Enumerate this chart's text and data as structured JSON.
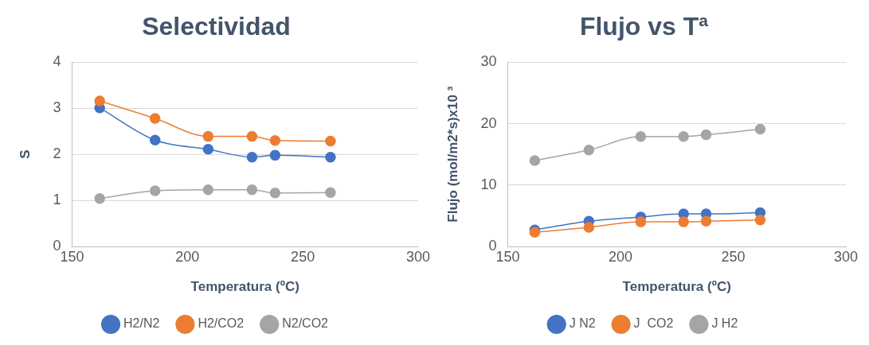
{
  "chart_data": [
    {
      "type": "line",
      "title": "Selectividad",
      "xlabel": "Temperatura (ºC)",
      "ylabel": "S",
      "xlim": [
        150,
        300
      ],
      "xticks": [
        150,
        200,
        250,
        300
      ],
      "ylim": [
        0,
        4
      ],
      "yticks": [
        0,
        1,
        2,
        3,
        4
      ],
      "grid": "y",
      "legend": "bottom",
      "marker": "circle",
      "series": [
        {
          "name": "H2/N2",
          "color": "#4472c4",
          "x": [
            162,
            186,
            209,
            228,
            238,
            262
          ],
          "values": [
            3.01,
            2.31,
            2.11,
            1.94,
            1.98,
            1.94
          ]
        },
        {
          "name": "H2/CO2",
          "color": "#ed7d31",
          "x": [
            162,
            186,
            209,
            228,
            238,
            262
          ],
          "values": [
            3.16,
            2.78,
            2.39,
            2.39,
            2.3,
            2.29
          ]
        },
        {
          "name": "N2/CO2",
          "color": "#a5a5a5",
          "x": [
            162,
            186,
            209,
            228,
            238,
            262
          ],
          "values": [
            1.04,
            1.21,
            1.23,
            1.23,
            1.16,
            1.17
          ]
        }
      ]
    },
    {
      "type": "line",
      "title": "Flujo vs Tª",
      "xlabel": "Temperatura (ºC)",
      "ylabel": "Flujo (mol/m2*s)x10 ³",
      "xlim": [
        150,
        300
      ],
      "xticks": [
        150,
        200,
        250,
        300
      ],
      "ylim": [
        0,
        30
      ],
      "yticks": [
        0,
        10,
        20,
        30
      ],
      "grid": "y",
      "legend": "bottom",
      "marker": "circle",
      "series": [
        {
          "name": "J N2",
          "color": "#4472c4",
          "x": [
            162,
            186,
            209,
            228,
            238,
            262
          ],
          "values": [
            2.7,
            4.1,
            4.8,
            5.3,
            5.3,
            5.5
          ]
        },
        {
          "name": "J  CO2",
          "color": "#ed7d31",
          "x": [
            162,
            186,
            209,
            228,
            238,
            262
          ],
          "values": [
            2.3,
            3.1,
            4.0,
            4.0,
            4.1,
            4.3
          ]
        },
        {
          "name": "J H2",
          "color": "#a5a5a5",
          "x": [
            162,
            186,
            209,
            228,
            238,
            262
          ],
          "values": [
            14.0,
            15.7,
            17.9,
            17.9,
            18.2,
            19.1
          ]
        }
      ]
    }
  ]
}
